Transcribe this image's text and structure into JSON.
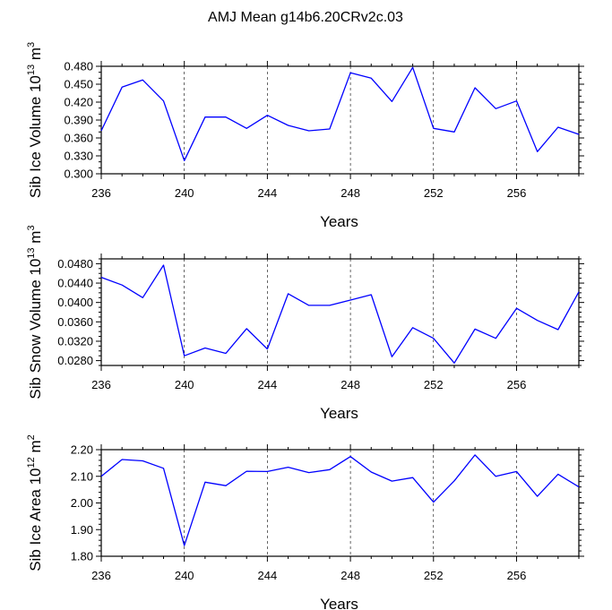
{
  "title": "AMJ Mean g14b6.20CRv2c.03",
  "chart_data": [
    {
      "type": "line",
      "ylabel": "Sib Ice Volume 10",
      "ylabel_exp": "13",
      "ylabel_unit": " m",
      "ylabel_unit_exp": "3",
      "xlabel": "Years",
      "xlim": [
        236,
        259
      ],
      "ylim": [
        0.3,
        0.48
      ],
      "xticks": [
        236,
        240,
        244,
        248,
        252,
        256
      ],
      "xtick_labels": [
        "236",
        "240",
        "244",
        "248",
        "252",
        "256"
      ],
      "yticks": [
        0.3,
        0.33,
        0.36,
        0.39,
        0.42,
        0.45,
        0.48
      ],
      "ytick_labels": [
        "0.300",
        "0.330",
        "0.360",
        "0.390",
        "0.420",
        "0.450",
        "0.480"
      ],
      "y_minor_step": 0.01,
      "x": [
        236,
        237,
        238,
        239,
        240,
        241,
        242,
        243,
        244,
        245,
        246,
        247,
        248,
        249,
        250,
        251,
        252,
        253,
        254,
        255,
        256,
        257,
        258,
        259
      ],
      "values": [
        0.372,
        0.445,
        0.457,
        0.422,
        0.322,
        0.395,
        0.395,
        0.376,
        0.398,
        0.381,
        0.372,
        0.375,
        0.469,
        0.46,
        0.421,
        0.478,
        0.376,
        0.37,
        0.444,
        0.409,
        0.422,
        0.337,
        0.378,
        0.366
      ]
    },
    {
      "type": "line",
      "ylabel": "Sib Snow Volume 10",
      "ylabel_exp": "13",
      "ylabel_unit": " m",
      "ylabel_unit_exp": "3",
      "xlabel": "Years",
      "xlim": [
        236,
        259
      ],
      "ylim": [
        0.027,
        0.049
      ],
      "xticks": [
        236,
        240,
        244,
        248,
        252,
        256
      ],
      "xtick_labels": [
        "236",
        "240",
        "244",
        "248",
        "252",
        "256"
      ],
      "yticks": [
        0.028,
        0.032,
        0.036,
        0.04,
        0.044,
        0.048
      ],
      "ytick_labels": [
        "0.0280",
        "0.0320",
        "0.0360",
        "0.0400",
        "0.0440",
        "0.0480"
      ],
      "y_minor_step": 0.001,
      "x": [
        236,
        237,
        238,
        239,
        240,
        241,
        242,
        243,
        244,
        245,
        246,
        247,
        248,
        249,
        250,
        251,
        252,
        253,
        254,
        255,
        256,
        257,
        258,
        259
      ],
      "values": [
        0.0452,
        0.0436,
        0.041,
        0.0477,
        0.029,
        0.0306,
        0.0295,
        0.0346,
        0.0304,
        0.0418,
        0.0394,
        0.0394,
        0.0405,
        0.0416,
        0.0288,
        0.0348,
        0.0326,
        0.0275,
        0.0345,
        0.0326,
        0.0388,
        0.0363,
        0.0344,
        0.0422
      ]
    },
    {
      "type": "line",
      "ylabel": "Sib Ice Area 10",
      "ylabel_exp": "12",
      "ylabel_unit": " m",
      "ylabel_unit_exp": "2",
      "xlabel": "Years",
      "xlim": [
        236,
        259
      ],
      "ylim": [
        1.8,
        2.2
      ],
      "xticks": [
        236,
        240,
        244,
        248,
        252,
        256
      ],
      "xtick_labels": [
        "236",
        "240",
        "244",
        "248",
        "252",
        "256"
      ],
      "yticks": [
        1.8,
        1.9,
        2.0,
        2.1,
        2.2
      ],
      "ytick_labels": [
        "1.80",
        "1.90",
        "2.00",
        "2.10",
        "2.20"
      ],
      "y_minor_step": 0.02,
      "x": [
        236,
        237,
        238,
        239,
        240,
        241,
        242,
        243,
        244,
        245,
        246,
        247,
        248,
        249,
        250,
        251,
        252,
        253,
        254,
        255,
        256,
        257,
        258,
        259
      ],
      "values": [
        2.1,
        2.163,
        2.158,
        2.13,
        1.84,
        2.078,
        2.065,
        2.119,
        2.118,
        2.134,
        2.114,
        2.125,
        2.174,
        2.116,
        2.082,
        2.095,
        2.003,
        2.083,
        2.18,
        2.1,
        2.118,
        2.025,
        2.108,
        2.06
      ]
    }
  ]
}
